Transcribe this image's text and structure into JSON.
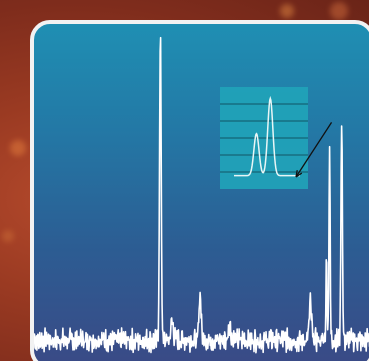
{
  "chart_data": {
    "type": "line",
    "title": "",
    "xlabel": "",
    "ylabel": "",
    "grid": false,
    "xlim": [
      0,
      100
    ],
    "ylim": [
      0,
      100
    ],
    "series": [
      {
        "color": "#ffffff",
        "peaks": [
          {
            "x": 37.5,
            "height": 92,
            "width": 0.35
          },
          {
            "x": 41.0,
            "height": 6,
            "width": 0.5
          },
          {
            "x": 49.3,
            "height": 14,
            "width": 0.45
          },
          {
            "x": 58.0,
            "height": 5,
            "width": 0.5
          },
          {
            "x": 82.0,
            "height": 11,
            "width": 0.5
          },
          {
            "x": 86.8,
            "height": 24,
            "width": 0.25
          },
          {
            "x": 87.7,
            "height": 58,
            "width": 0.25
          },
          {
            "x": 91.3,
            "height": 68,
            "width": 0.3
          }
        ],
        "baseline": 6,
        "noise_amplitude": 3.2
      }
    ],
    "inset": {
      "type": "line",
      "background": "#21a3b8",
      "grid_lines": 5,
      "peaks": [
        {
          "x": 0.34,
          "height": 0.5
        },
        {
          "x": 0.55,
          "height": 0.92
        }
      ]
    },
    "annotation": {
      "type": "arrow",
      "from": "peak",
      "to": "inset"
    }
  },
  "colors": {
    "frame_border": "#f2f2f2",
    "plot_top": "#1f8fb3",
    "plot_bottom": "#3a4a86",
    "background": "#8e3421"
  }
}
